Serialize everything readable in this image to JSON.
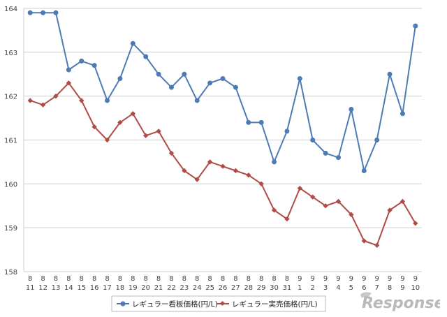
{
  "chart_data": {
    "type": "line",
    "categories": [
      [
        "8",
        "11"
      ],
      [
        "8",
        "12"
      ],
      [
        "8",
        "13"
      ],
      [
        "8",
        "14"
      ],
      [
        "8",
        "15"
      ],
      [
        "8",
        "16"
      ],
      [
        "8",
        "17"
      ],
      [
        "8",
        "18"
      ],
      [
        "8",
        "19"
      ],
      [
        "8",
        "20"
      ],
      [
        "8",
        "21"
      ],
      [
        "8",
        "22"
      ],
      [
        "8",
        "23"
      ],
      [
        "8",
        "24"
      ],
      [
        "8",
        "25"
      ],
      [
        "8",
        "26"
      ],
      [
        "8",
        "27"
      ],
      [
        "8",
        "28"
      ],
      [
        "8",
        "29"
      ],
      [
        "8",
        "30"
      ],
      [
        "8",
        "31"
      ],
      [
        "9",
        "1"
      ],
      [
        "9",
        "2"
      ],
      [
        "9",
        "3"
      ],
      [
        "9",
        "4"
      ],
      [
        "9",
        "5"
      ],
      [
        "9",
        "6"
      ],
      [
        "9",
        "7"
      ],
      [
        "9",
        "8"
      ],
      [
        "9",
        "9"
      ],
      [
        "9",
        "10"
      ]
    ],
    "series": [
      {
        "name": "レギュラー看板価格(円/L)",
        "color": "#4f7bb5",
        "marker": "circle",
        "values": [
          163.9,
          163.9,
          163.9,
          162.6,
          162.8,
          162.7,
          161.9,
          162.4,
          163.2,
          162.9,
          162.5,
          162.2,
          162.5,
          161.9,
          162.3,
          162.4,
          162.2,
          161.4,
          161.4,
          160.5,
          161.2,
          162.4,
          161.0,
          160.7,
          160.6,
          161.7,
          160.3,
          161.0,
          162.5,
          161.6,
          163.6
        ]
      },
      {
        "name": "レギュラー実売価格(円/L)",
        "color": "#b04b46",
        "marker": "diamond",
        "values": [
          161.9,
          161.8,
          162.0,
          162.3,
          161.9,
          161.3,
          161.0,
          161.4,
          161.6,
          161.1,
          161.2,
          160.7,
          160.3,
          160.1,
          160.5,
          160.4,
          160.3,
          160.2,
          160.0,
          159.4,
          159.2,
          159.9,
          159.7,
          159.5,
          159.6,
          159.3,
          158.7,
          158.6,
          159.4,
          159.6,
          159.1
        ]
      }
    ],
    "yticks": [
      "164",
      "163",
      "162",
      "161",
      "160",
      "159",
      "158"
    ],
    "ylim": [
      158,
      164
    ],
    "grid": true,
    "legend_position": "bottom",
    "xlabel": "",
    "ylabel": "",
    "title": ""
  },
  "watermark": {
    "text": "Response."
  }
}
